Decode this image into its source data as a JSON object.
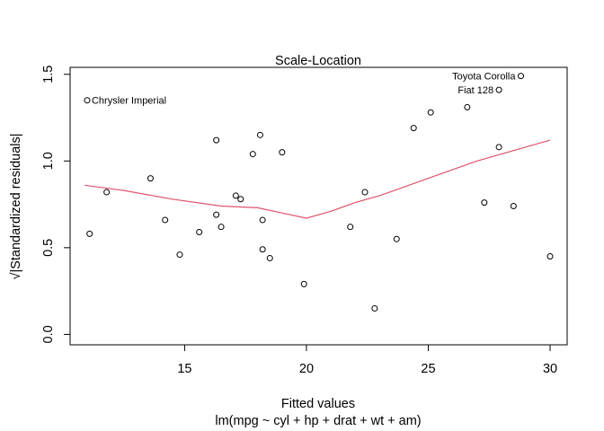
{
  "chart_data": {
    "type": "scatter",
    "title": "Scale-Location",
    "xlabel": "Fitted values",
    "subtitle": "lm(mpg ~ cyl + hp + drat + wt + am)",
    "ylabel": "√|Standardized residuals|",
    "xlim": [
      10.3,
      30.7
    ],
    "ylim": [
      -0.06,
      1.54
    ],
    "x_ticks": [
      15,
      20,
      25,
      30
    ],
    "y_ticks": [
      0.0,
      0.5,
      1.0,
      1.5
    ],
    "x_tick_labels": [
      "15",
      "20",
      "25",
      "30"
    ],
    "y_tick_labels": [
      "0.0",
      "0.5",
      "1.0",
      "1.5"
    ],
    "grid": false,
    "point_color": "#000000",
    "smooth_color": "#DF536B",
    "points": [
      {
        "x": 11.0,
        "y": 1.35
      },
      {
        "x": 11.1,
        "y": 0.58
      },
      {
        "x": 11.8,
        "y": 0.82
      },
      {
        "x": 13.6,
        "y": 0.9
      },
      {
        "x": 14.2,
        "y": 0.66
      },
      {
        "x": 14.8,
        "y": 0.46
      },
      {
        "x": 15.6,
        "y": 0.59
      },
      {
        "x": 16.3,
        "y": 1.12
      },
      {
        "x": 16.3,
        "y": 0.69
      },
      {
        "x": 16.5,
        "y": 0.62
      },
      {
        "x": 17.1,
        "y": 0.8
      },
      {
        "x": 17.3,
        "y": 0.78
      },
      {
        "x": 17.8,
        "y": 1.04
      },
      {
        "x": 18.1,
        "y": 1.15
      },
      {
        "x": 18.2,
        "y": 0.66
      },
      {
        "x": 18.2,
        "y": 0.49
      },
      {
        "x": 18.5,
        "y": 0.44
      },
      {
        "x": 19.0,
        "y": 1.05
      },
      {
        "x": 19.9,
        "y": 0.29
      },
      {
        "x": 21.8,
        "y": 0.62
      },
      {
        "x": 22.4,
        "y": 0.82
      },
      {
        "x": 22.8,
        "y": 0.15
      },
      {
        "x": 23.7,
        "y": 0.55
      },
      {
        "x": 24.4,
        "y": 1.19
      },
      {
        "x": 25.1,
        "y": 1.28
      },
      {
        "x": 26.6,
        "y": 1.31
      },
      {
        "x": 27.3,
        "y": 0.76
      },
      {
        "x": 27.9,
        "y": 1.08
      },
      {
        "x": 27.9,
        "y": 1.41
      },
      {
        "x": 28.5,
        "y": 0.74
      },
      {
        "x": 28.8,
        "y": 1.49
      },
      {
        "x": 30.0,
        "y": 0.45
      }
    ],
    "labeled_points": [
      {
        "x": 11.0,
        "y": 1.35,
        "label": "Chrysler Imperial",
        "side": "right"
      },
      {
        "x": 28.8,
        "y": 1.49,
        "label": "Toyota Corolla",
        "side": "left"
      },
      {
        "x": 27.9,
        "y": 1.41,
        "label": "Fiat 128",
        "side": "left"
      }
    ],
    "smooth_line": {
      "x": [
        10.9,
        12.5,
        14.5,
        16.5,
        18.0,
        19.0,
        20.0,
        21.0,
        22.0,
        23.0,
        24.0,
        25.0,
        26.0,
        27.0,
        28.0,
        29.0,
        30.0
      ],
      "y": [
        0.86,
        0.83,
        0.78,
        0.74,
        0.73,
        0.7,
        0.67,
        0.71,
        0.76,
        0.8,
        0.85,
        0.9,
        0.95,
        1.0,
        1.04,
        1.08,
        1.12
      ]
    }
  }
}
